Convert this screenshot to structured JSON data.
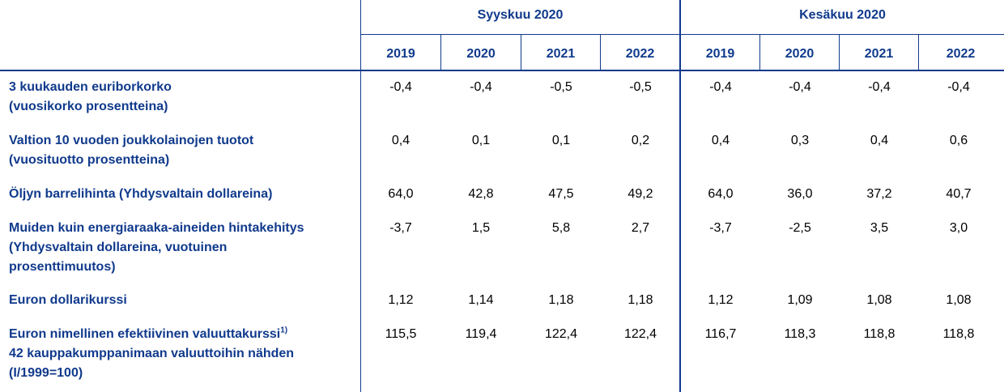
{
  "groups": [
    {
      "label": "Syyskuu 2020"
    },
    {
      "label": "Kesäkuu 2020"
    }
  ],
  "years": [
    "2019",
    "2020",
    "2021",
    "2022",
    "2019",
    "2020",
    "2021",
    "2022"
  ],
  "rows": [
    {
      "label": "3 kuukauden euriborkorko\n(vuosikorko prosentteina)",
      "sup": "",
      "values": [
        "-0,4",
        "-0,4",
        "-0,5",
        "-0,5",
        "-0,4",
        "-0,4",
        "-0,4",
        "-0,4"
      ]
    },
    {
      "label": "Valtion 10 vuoden joukkolainojen tuotot\n(vuosituotto prosentteina)",
      "sup": "",
      "values": [
        "0,4",
        "0,1",
        "0,1",
        "0,2",
        "0,4",
        "0,3",
        "0,4",
        "0,6"
      ]
    },
    {
      "label": "Öljyn barrelihinta (Yhdysvaltain dollareina)",
      "sup": "",
      "values": [
        "64,0",
        "42,8",
        "47,5",
        "49,2",
        "64,0",
        "36,0",
        "37,2",
        "40,7"
      ]
    },
    {
      "label": "Muiden kuin energiaraaka-aineiden hintakehitys\n(Yhdysvaltain dollareina, vuotuinen\nprosenttimuutos)",
      "sup": "",
      "values": [
        "-3,7",
        "1,5",
        "5,8",
        "2,7",
        "-3,7",
        "-2,5",
        "3,5",
        "3,0"
      ]
    },
    {
      "label": "Euron dollarikurssi",
      "sup": "",
      "values": [
        "1,12",
        "1,14",
        "1,18",
        "1,18",
        "1,12",
        "1,09",
        "1,08",
        "1,08"
      ]
    },
    {
      "label": "Euron nimellinen efektiivinen valuuttakurssi",
      "sup": "1)",
      "label_cont": "42 kauppakumppanimaan valuuttoihin nähden\n(I/1999=100)",
      "values": [
        "115,5",
        "119,4",
        "122,4",
        "122,4",
        "116,7",
        "118,3",
        "118,8",
        "118,8"
      ]
    }
  ]
}
